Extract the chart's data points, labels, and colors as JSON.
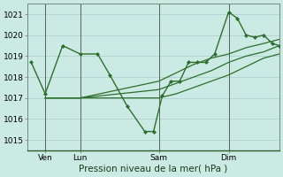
{
  "background_color": "#cceae4",
  "grid_color": "#aacccc",
  "line_color": "#2d6e2d",
  "title": "Pression niveau de la mer( hPa )",
  "ylabel_ticks": [
    1015,
    1016,
    1017,
    1018,
    1019,
    1020,
    1021
  ],
  "ylim": [
    1014.5,
    1021.5
  ],
  "xlim": [
    -0.2,
    14.2
  ],
  "x_tick_labels": [
    "Ven",
    "Lun",
    "Sam",
    "Dim"
  ],
  "x_tick_positions": [
    0.8,
    2.8,
    7.3,
    11.3
  ],
  "x_vlines": [
    0.8,
    2.8,
    7.3,
    11.3
  ],
  "series": [
    {
      "x": [
        0.0,
        0.8,
        1.8,
        2.8,
        3.8,
        4.5,
        5.5,
        6.5,
        7.0,
        7.5,
        8.0,
        8.5,
        9.0,
        9.5,
        10.0,
        10.5,
        11.3,
        11.8,
        12.3,
        12.8,
        13.3,
        13.8,
        14.2
      ],
      "y": [
        1018.7,
        1017.2,
        1019.5,
        1019.1,
        1019.1,
        1018.1,
        1016.6,
        1015.4,
        1015.4,
        1017.1,
        1017.8,
        1017.8,
        1018.7,
        1018.7,
        1018.7,
        1019.1,
        1021.1,
        1020.8,
        1020.0,
        1019.9,
        1020.0,
        1019.6,
        1019.5
      ],
      "marker": "D",
      "markersize": 2.0,
      "linewidth": 1.0
    },
    {
      "x": [
        0.8,
        2.8,
        7.3,
        8.3,
        9.3,
        10.3,
        11.3,
        12.3,
        13.3,
        14.2
      ],
      "y": [
        1017.0,
        1017.0,
        1017.8,
        1018.2,
        1018.6,
        1018.9,
        1019.1,
        1019.4,
        1019.6,
        1019.8
      ],
      "marker": null,
      "markersize": 0,
      "linewidth": 0.9
    },
    {
      "x": [
        0.8,
        2.8,
        7.3,
        8.3,
        9.3,
        10.3,
        11.3,
        12.3,
        13.3,
        14.2
      ],
      "y": [
        1017.0,
        1017.0,
        1017.4,
        1017.7,
        1018.0,
        1018.3,
        1018.7,
        1019.0,
        1019.2,
        1019.5
      ],
      "marker": null,
      "markersize": 0,
      "linewidth": 0.9
    },
    {
      "x": [
        0.8,
        2.8,
        7.3,
        8.3,
        9.3,
        10.3,
        11.3,
        12.3,
        13.3,
        14.2
      ],
      "y": [
        1017.0,
        1017.0,
        1017.0,
        1017.2,
        1017.5,
        1017.8,
        1018.1,
        1018.5,
        1018.9,
        1019.1
      ],
      "marker": null,
      "markersize": 0,
      "linewidth": 0.9
    }
  ],
  "title_fontsize": 7.5,
  "tick_fontsize": 6.5
}
